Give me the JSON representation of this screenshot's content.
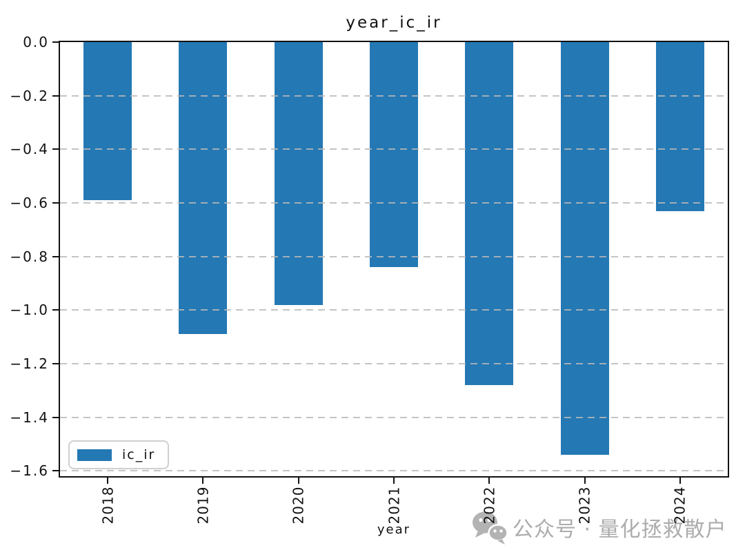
{
  "figure": {
    "watermark": {
      "icon": "wechat-icon",
      "text": "公众号 · 量化拯救散户"
    }
  },
  "chart_data": {
    "type": "bar",
    "title": "year_ic_ir",
    "xlabel": "year",
    "ylabel": "",
    "categories": [
      "2018",
      "2019",
      "2020",
      "2021",
      "2022",
      "2023",
      "2024"
    ],
    "series": [
      {
        "name": "ic_ir",
        "values": [
          -0.59,
          -1.09,
          -0.98,
          -0.84,
          -1.28,
          -1.54,
          -0.63
        ]
      }
    ],
    "ylim": [
      -1.62,
      0.0
    ],
    "yticks": [
      0.0,
      -0.2,
      -0.4,
      -0.6,
      -0.8,
      -1.0,
      -1.2,
      -1.4,
      -1.6
    ],
    "grid": "horizontal-dashed-above-bars",
    "legend": {
      "position": "lower-left",
      "entries": [
        "ic_ir"
      ]
    },
    "colors": {
      "bar": "#2478b4",
      "grid": "#b9b9b9",
      "spine": "#111111",
      "watermark": "#acacac"
    }
  }
}
